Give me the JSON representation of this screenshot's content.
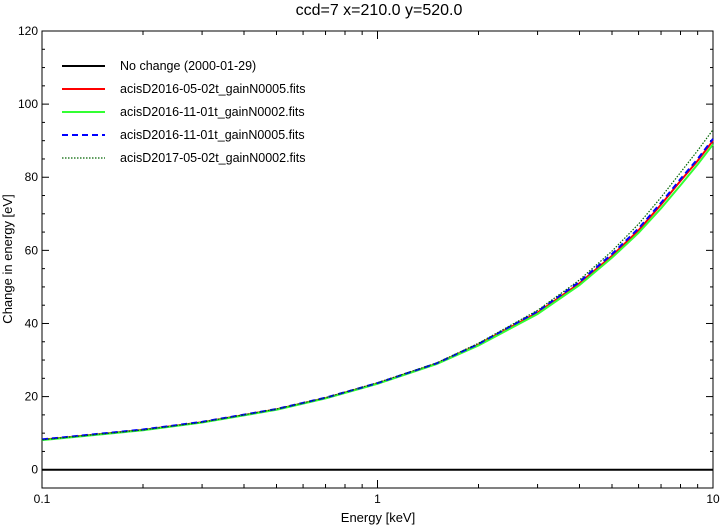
{
  "chart_data": {
    "type": "line",
    "title": "ccd=7 x=210.0 y=520.0",
    "xlabel": "Energy [keV]",
    "ylabel": "Change in energy [eV]",
    "xscale": "log",
    "xlim": [
      0.1,
      10
    ],
    "ylim": [
      -5,
      120
    ],
    "xticks": [
      0.1,
      1,
      10
    ],
    "xtick_labels": [
      "0.1",
      "1",
      "10"
    ],
    "yticks": [
      0,
      20,
      40,
      60,
      80,
      100,
      120
    ],
    "ytick_labels": [
      "0",
      "20",
      "40",
      "60",
      "80",
      "100",
      "120"
    ],
    "grid": false,
    "legend_position": "top-left",
    "x": [
      0.1,
      0.2,
      0.3,
      0.5,
      0.7,
      1.0,
      1.5,
      2.0,
      3.0,
      4.0,
      5.0,
      6.0,
      7.0,
      8.0,
      9.0,
      10.0
    ],
    "series": [
      {
        "name": "No change (2000-01-29)",
        "color": "#000000",
        "style": "solid",
        "values": [
          0,
          0,
          0,
          0,
          0,
          0,
          0,
          0,
          0,
          0,
          0,
          0,
          0,
          0,
          0,
          0
        ]
      },
      {
        "name": "acisD2016-05-02t_gainN0005.fits",
        "color": "#ff0000",
        "style": "solid",
        "values": [
          8.2,
          10.9,
          13.0,
          16.5,
          19.6,
          23.6,
          29.0,
          34.2,
          43.0,
          51.0,
          58.5,
          65.5,
          72.5,
          79.0,
          84.5,
          90.0
        ]
      },
      {
        "name": "acisD2016-11-01t_gainN0002.fits",
        "color": "#33ff33",
        "style": "solid",
        "values": [
          8.1,
          10.8,
          12.9,
          16.4,
          19.5,
          23.5,
          28.9,
          34.0,
          42.6,
          50.5,
          58.0,
          64.8,
          71.5,
          77.8,
          83.5,
          89.0
        ]
      },
      {
        "name": "acisD2016-11-01t_gainN0005.fits",
        "color": "#0000ff",
        "style": "dashed",
        "values": [
          8.3,
          11.0,
          13.1,
          16.6,
          19.7,
          23.7,
          29.1,
          34.4,
          43.3,
          51.4,
          59.0,
          66.0,
          73.0,
          79.5,
          85.0,
          90.5
        ]
      },
      {
        "name": "acisD2017-05-02t_gainN0002.fits",
        "color": "#006400",
        "style": "dotted",
        "values": [
          8.2,
          10.9,
          13.0,
          16.6,
          19.7,
          23.8,
          29.2,
          34.6,
          43.6,
          51.9,
          59.8,
          67.2,
          74.5,
          81.3,
          87.3,
          93.0
        ]
      }
    ]
  }
}
